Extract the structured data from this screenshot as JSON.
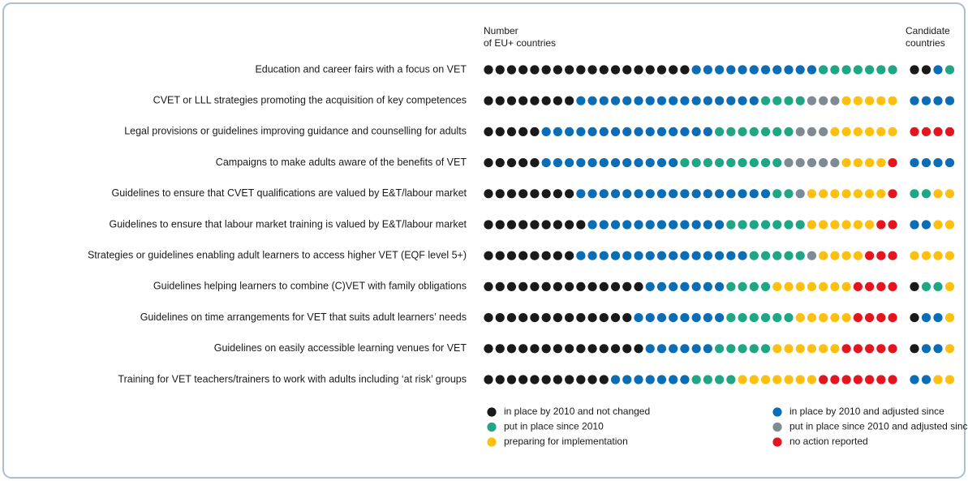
{
  "chart_data": {
    "type": "dot-count",
    "eu_header": [
      "Number",
      "of EU+ countries"
    ],
    "candidate_header": [
      "Candidate",
      "countries"
    ],
    "legend": [
      {
        "name": "in place by 2010 and not changed",
        "color": "#1a1a1a"
      },
      {
        "name": "in place by 2010 and adjusted since",
        "color": "#0a6db5"
      },
      {
        "name": "put in place since 2010",
        "color": "#1fa685"
      },
      {
        "name": "put in place since 2010 and adjusted since",
        "color": "#7d8b95"
      },
      {
        "name": "preparing for implementation",
        "color": "#fdc010"
      },
      {
        "name": "no action reported",
        "color": "#e4151f"
      }
    ],
    "rows": [
      {
        "label": "Education and career fairs with a focus on VET",
        "eu": [
          18,
          11,
          7,
          0,
          0,
          0
        ],
        "candidate": [
          2,
          1,
          1,
          0,
          0,
          0
        ]
      },
      {
        "label": "CVET or LLL strategies promoting the acquisition of key competences",
        "eu": [
          8,
          16,
          4,
          3,
          5,
          0
        ],
        "candidate": [
          0,
          4,
          0,
          0,
          0,
          0
        ]
      },
      {
        "label": "Legal provisions or guidelines improving guidance and counselling for adults",
        "eu": [
          5,
          15,
          7,
          3,
          6,
          0
        ],
        "candidate": [
          0,
          0,
          0,
          0,
          0,
          4
        ]
      },
      {
        "label": "Campaigns to make adults aware of the benefits of VET",
        "eu": [
          5,
          12,
          9,
          5,
          4,
          1
        ],
        "candidate": [
          0,
          4,
          0,
          0,
          0,
          0
        ]
      },
      {
        "label": "Guidelines to ensure that CVET qualifications are valued by E&T/labour market",
        "eu": [
          8,
          17,
          2,
          1,
          7,
          1
        ],
        "candidate": [
          0,
          0,
          2,
          0,
          2,
          0
        ]
      },
      {
        "label": "Guidelines to ensure that labour market training is valued by E&T/labour market",
        "eu": [
          9,
          12,
          7,
          0,
          6,
          2
        ],
        "candidate": [
          0,
          2,
          0,
          0,
          2,
          0
        ]
      },
      {
        "label": "Strategies or guidelines enabling adult learners to access higher VET (EQF level 5+)",
        "eu": [
          8,
          15,
          5,
          1,
          4,
          3
        ],
        "candidate": [
          0,
          0,
          0,
          0,
          4,
          0
        ]
      },
      {
        "label": "Guidelines helping learners to combine (C)VET with family obligations",
        "eu": [
          14,
          7,
          4,
          0,
          7,
          4
        ],
        "candidate": [
          1,
          0,
          2,
          0,
          1,
          0
        ]
      },
      {
        "label": "Guidelines on time arrangements for VET that suits adult learners’ needs",
        "eu": [
          13,
          8,
          6,
          0,
          5,
          4
        ],
        "candidate": [
          1,
          2,
          0,
          0,
          1,
          0
        ]
      },
      {
        "label": "Guidelines on easily accessible learning venues for VET",
        "eu": [
          14,
          6,
          5,
          0,
          6,
          5
        ],
        "candidate": [
          1,
          2,
          0,
          0,
          1,
          0
        ]
      },
      {
        "label": "Training for VET teachers/trainers to work with adults including ‘at risk’ groups",
        "eu": [
          11,
          7,
          4,
          0,
          7,
          7
        ],
        "candidate": [
          0,
          2,
          0,
          0,
          2,
          0
        ]
      }
    ]
  }
}
